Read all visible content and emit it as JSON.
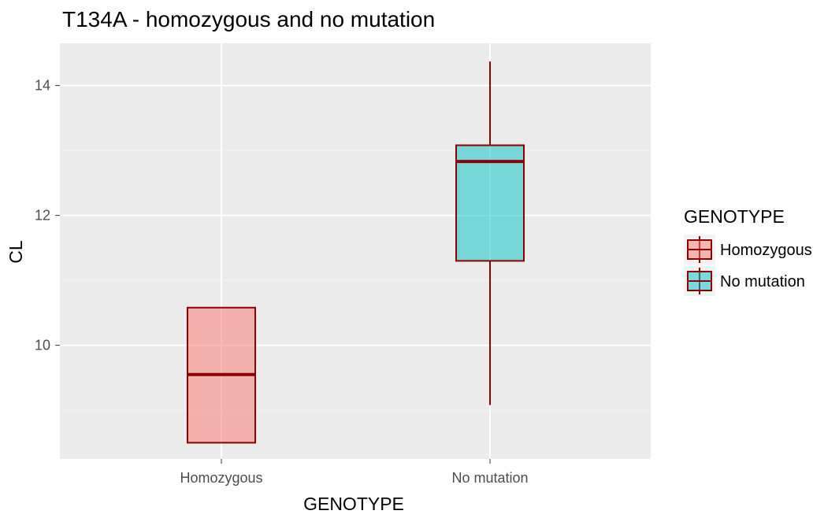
{
  "chart_data": {
    "type": "box",
    "title": "T134A - homozygous and no mutation",
    "xlabel": "GENOTYPE",
    "ylabel": "CL",
    "categories": [
      "Homozygous",
      "No mutation"
    ],
    "ylim": [
      8.25,
      14.65
    ],
    "yticks": [
      10,
      12,
      14
    ],
    "grid": true,
    "legend": {
      "title": "GENOTYPE",
      "position": "right",
      "items": [
        {
          "label": "Homozygous",
          "color": "#F8766D"
        },
        {
          "label": "No mutation",
          "color": "#00BFC4"
        }
      ]
    },
    "series": [
      {
        "name": "Homozygous",
        "min": 8.5,
        "q1": 8.5,
        "median": 9.55,
        "q3": 10.58,
        "max": 10.58
      },
      {
        "name": "No mutation",
        "min": 9.08,
        "q1": 11.3,
        "median": 12.83,
        "q3": 13.08,
        "max": 14.37
      }
    ]
  },
  "colors": {
    "panel_background": "#EBEBEB",
    "grid_major": "#FFFFFF",
    "grid_minor": "#F2F2F2",
    "box_outline": "#8B0000",
    "tick_text": "#4D4D4D"
  }
}
